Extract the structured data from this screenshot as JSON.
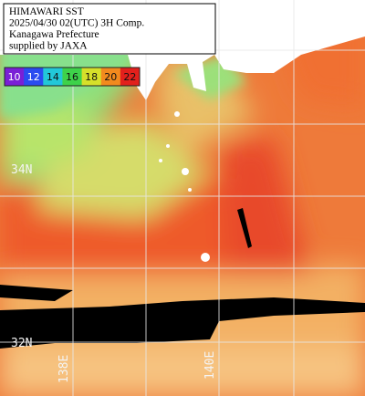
{
  "header": {
    "lines": [
      "HIMAWARI SST",
      "2025/04/30 02(UTC) 3H Comp.",
      "Kanagawa Prefecture",
      "supplied by JAXA"
    ]
  },
  "colorbar": [
    {
      "value": 10,
      "color": "#7a1fd6"
    },
    {
      "value": 12,
      "color": "#2a4cf0"
    },
    {
      "value": 14,
      "color": "#22c8d8"
    },
    {
      "value": 16,
      "color": "#3ed24a"
    },
    {
      "value": 18,
      "color": "#d6e02a"
    },
    {
      "value": 20,
      "color": "#f28a1e"
    },
    {
      "value": 22,
      "color": "#e2201c"
    }
  ],
  "grid_labels": {
    "lat": [
      "34N",
      "32N"
    ],
    "lon": [
      "138E",
      "140E"
    ]
  }
}
